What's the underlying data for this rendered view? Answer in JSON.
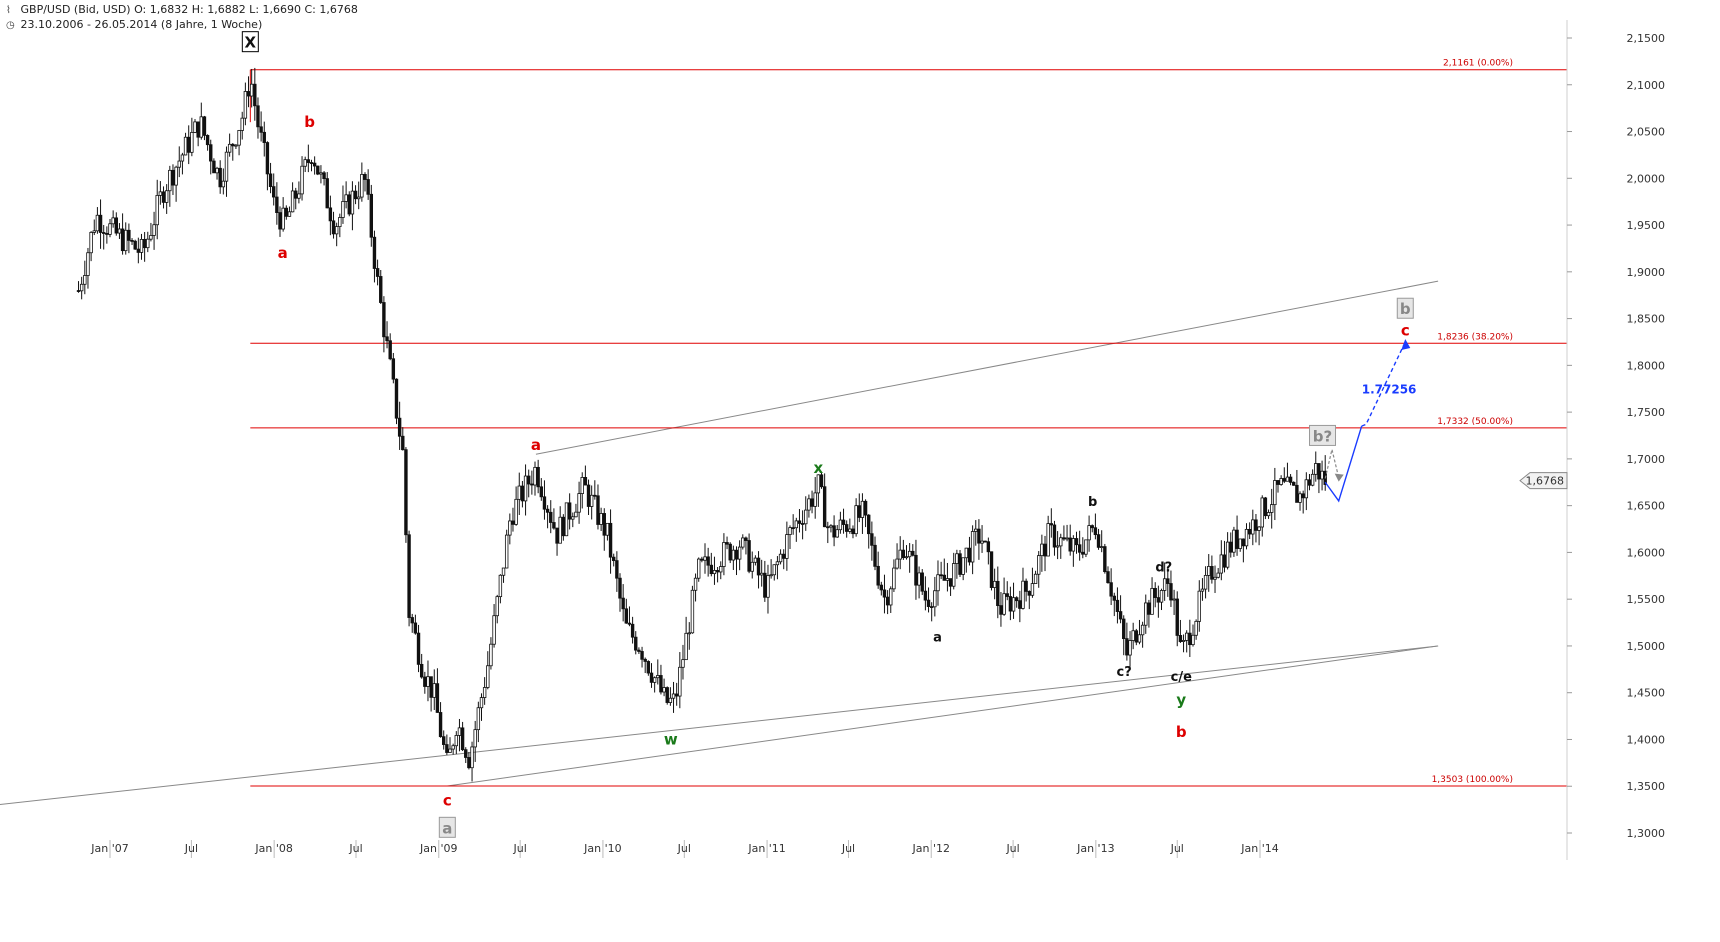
{
  "header": {
    "line1": "GBP/USD (Bid, USD)  O: 1,6832  H: 1,6882  L: 1,6690  C: 1,6768",
    "line2": "23.10.2006 - 26.05.2014 (8 Jahre, 1 Woche)",
    "icon1": "chart-icon",
    "icon2": "clock-icon"
  },
  "colors": {
    "fib": "#e00000",
    "wave_red": "#dd0000",
    "wave_green": "#1a7a1a",
    "wave_black": "#111111",
    "wave_gray": "#888888",
    "channel": "#888888",
    "projection": "#1a3cff",
    "candle": "#111111"
  },
  "chart_data": {
    "type": "candlestick",
    "title": "GBP/USD (Bid, USD)",
    "ylim": [
      1.3,
      2.16
    ],
    "y_ticks": [
      "2,1500",
      "2,1000",
      "2,0500",
      "2,0000",
      "1,9500",
      "1,9000",
      "1,8500",
      "1,8000",
      "1,7500",
      "1,7000",
      "1,6500",
      "1,6000",
      "1,5500",
      "1,5000",
      "1,4500",
      "1,4000",
      "1,3500",
      "1,3000"
    ],
    "y_tick_values": [
      2.15,
      2.1,
      2.05,
      2.0,
      1.95,
      1.9,
      1.85,
      1.8,
      1.75,
      1.7,
      1.65,
      1.6,
      1.55,
      1.5,
      1.45,
      1.4,
      1.35,
      1.3
    ],
    "x_ticks": [
      "Jan '07",
      "Jul",
      "Jan '08",
      "Jul",
      "Jan '09",
      "Jul",
      "Jan '10",
      "Jul",
      "Jan '11",
      "Jul",
      "Jan '12",
      "Jul",
      "Jan '13",
      "Jul",
      "Jan '14"
    ],
    "x_tick_dates": [
      "2007-01-01",
      "2007-07-01",
      "2008-01-01",
      "2008-07-01",
      "2009-01-01",
      "2009-07-01",
      "2010-01-01",
      "2010-07-01",
      "2011-01-01",
      "2011-07-01",
      "2012-01-01",
      "2012-07-01",
      "2013-01-01",
      "2013-07-01",
      "2014-01-01"
    ],
    "x_range": [
      "2006-10-23",
      "2014-05-26"
    ],
    "last_price": "1,6768",
    "last_price_value": 1.6768,
    "price_path": [
      [
        "2006-10-23",
        1.88
      ],
      [
        "2006-12-01",
        1.96
      ],
      [
        "2007-01-15",
        1.94
      ],
      [
        "2007-03-15",
        1.92
      ],
      [
        "2007-05-01",
        1.99
      ],
      [
        "2007-07-20",
        2.06
      ],
      [
        "2007-09-01",
        2.0
      ],
      [
        "2007-10-25",
        2.07
      ],
      [
        "2007-11-09",
        2.11
      ],
      [
        "2007-11-25",
        2.06
      ],
      [
        "2008-01-01",
        1.97
      ],
      [
        "2008-01-25",
        1.95
      ],
      [
        "2008-03-25",
        2.03
      ],
      [
        "2008-05-15",
        1.95
      ],
      [
        "2008-07-20",
        2.0
      ],
      [
        "2008-08-20",
        1.88
      ],
      [
        "2008-09-20",
        1.78
      ],
      [
        "2008-10-15",
        1.7
      ],
      [
        "2008-10-25",
        1.54
      ],
      [
        "2008-11-30",
        1.47
      ],
      [
        "2008-12-20",
        1.45
      ],
      [
        "2009-01-20",
        1.37
      ],
      [
        "2009-02-10",
        1.42
      ],
      [
        "2009-03-10",
        1.38
      ],
      [
        "2009-04-20",
        1.48
      ],
      [
        "2009-06-10",
        1.64
      ],
      [
        "2009-08-05",
        1.69
      ],
      [
        "2009-09-20",
        1.62
      ],
      [
        "2009-11-20",
        1.67
      ],
      [
        "2010-01-10",
        1.62
      ],
      [
        "2010-02-20",
        1.52
      ],
      [
        "2010-03-25",
        1.5
      ],
      [
        "2010-05-20",
        1.44
      ],
      [
        "2010-06-10",
        1.44
      ],
      [
        "2010-08-01",
        1.58
      ],
      [
        "2010-11-01",
        1.61
      ],
      [
        "2011-01-01",
        1.56
      ],
      [
        "2011-02-20",
        1.62
      ],
      [
        "2011-04-25",
        1.67
      ],
      [
        "2011-05-20",
        1.62
      ],
      [
        "2011-08-01",
        1.64
      ],
      [
        "2011-09-20",
        1.55
      ],
      [
        "2011-11-01",
        1.61
      ],
      [
        "2011-12-20",
        1.55
      ],
      [
        "2012-02-20",
        1.58
      ],
      [
        "2012-04-20",
        1.62
      ],
      [
        "2012-06-01",
        1.54
      ],
      [
        "2012-08-01",
        1.56
      ],
      [
        "2012-09-20",
        1.62
      ],
      [
        "2012-11-20",
        1.6
      ],
      [
        "2013-01-02",
        1.63
      ],
      [
        "2013-02-20",
        1.53
      ],
      [
        "2013-03-10",
        1.49
      ],
      [
        "2013-04-20",
        1.54
      ],
      [
        "2013-06-15",
        1.57
      ],
      [
        "2013-07-10",
        1.49
      ],
      [
        "2013-08-01",
        1.52
      ],
      [
        "2013-09-15",
        1.58
      ],
      [
        "2013-11-01",
        1.61
      ],
      [
        "2013-12-15",
        1.63
      ],
      [
        "2014-02-15",
        1.67
      ],
      [
        "2014-04-01",
        1.66
      ],
      [
        "2014-05-05",
        1.69
      ],
      [
        "2014-05-26",
        1.6768
      ]
    ],
    "fib_levels": [
      {
        "label": "2,1161 (0.00%)",
        "value": 2.1161
      },
      {
        "label": "1,8236 (38.20%)",
        "value": 1.8236
      },
      {
        "label": "1,7332 (50.00%)",
        "value": 1.7332
      },
      {
        "label": "1,3503 (100.00%)",
        "value": 1.3503
      }
    ],
    "fib_start_date": "2007-11-09",
    "wave_labels": [
      {
        "text": "X",
        "date": "2007-11-09",
        "value": 2.145,
        "color": "black",
        "boxed": true
      },
      {
        "text": "b",
        "date": "2008-03-20",
        "value": 2.06,
        "color": "red"
      },
      {
        "text": "a",
        "date": "2008-01-20",
        "value": 1.92,
        "color": "red"
      },
      {
        "text": "c",
        "date": "2009-01-20",
        "value": 1.335,
        "color": "red"
      },
      {
        "text": "a",
        "date": "2009-01-20",
        "value": 1.305,
        "color": "gray",
        "boxed": true
      },
      {
        "text": "a",
        "date": "2009-08-05",
        "value": 1.715,
        "color": "red"
      },
      {
        "text": "w",
        "date": "2010-06-01",
        "value": 1.4,
        "color": "green"
      },
      {
        "text": "x",
        "date": "2011-04-25",
        "value": 1.69,
        "color": "green"
      },
      {
        "text": "a",
        "date": "2012-01-15",
        "value": 1.51,
        "color": "black"
      },
      {
        "text": "b",
        "date": "2012-12-25",
        "value": 1.655,
        "color": "black"
      },
      {
        "text": "c?",
        "date": "2013-03-05",
        "value": 1.473,
        "color": "black"
      },
      {
        "text": "d?",
        "date": "2013-06-01",
        "value": 1.585,
        "color": "black"
      },
      {
        "text": "c/e",
        "date": "2013-07-10",
        "value": 1.468,
        "color": "black"
      },
      {
        "text": "y",
        "date": "2013-07-10",
        "value": 1.442,
        "color": "green"
      },
      {
        "text": "b",
        "date": "2013-07-10",
        "value": 1.408,
        "color": "red"
      },
      {
        "text": "b?",
        "date": "2014-05-20",
        "value": 1.724,
        "color": "gray",
        "boxed": true
      },
      {
        "text": "b",
        "date": "2014-11-20",
        "value": 1.86,
        "color": "gray",
        "boxed": true
      },
      {
        "text": "c",
        "date": "2014-11-20",
        "value": 1.837,
        "color": "red"
      }
    ],
    "projection_label": "1.77256",
    "projection_label_anchor": {
      "date": "2014-10-15",
      "value": 1.775
    },
    "channel_lines": [
      {
        "from": [
          "2005-10-15",
          1.32
        ],
        "to": [
          "2015-02-01",
          1.5
        ]
      },
      {
        "from": [
          "2009-01-20",
          1.3503
        ],
        "to": [
          "2015-02-01",
          1.5
        ]
      },
      {
        "from": [
          "2009-08-05",
          1.705
        ],
        "to": [
          "2015-02-01",
          1.89
        ]
      }
    ],
    "projection_path": [
      [
        "2014-05-26",
        1.675
      ],
      [
        "2014-06-25",
        1.655
      ],
      [
        "2014-08-15",
        1.735
      ]
    ],
    "projection_dashed": [
      [
        "2014-08-15",
        1.735
      ],
      [
        "2014-08-25",
        1.737
      ],
      [
        "2014-11-20",
        1.825
      ]
    ],
    "projection_gray_dashed": [
      [
        "2014-05-26",
        1.679
      ],
      [
        "2014-06-10",
        1.71
      ],
      [
        "2014-06-25",
        1.68
      ]
    ]
  }
}
